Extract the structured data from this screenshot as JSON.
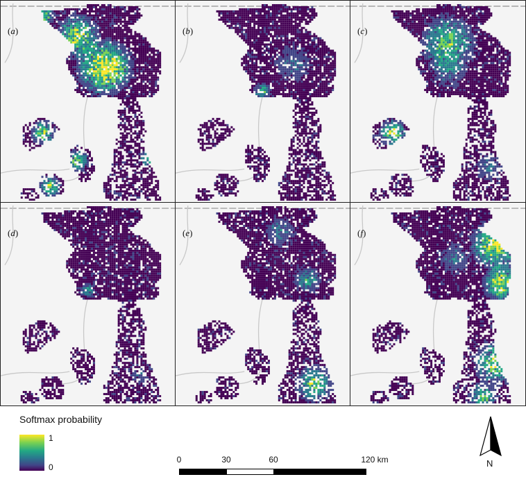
{
  "panels": [
    {
      "label": "a",
      "mode": "a"
    },
    {
      "label": "b",
      "mode": "b"
    },
    {
      "label": "c",
      "mode": "c"
    },
    {
      "label": "d",
      "mode": "d"
    },
    {
      "label": "e",
      "mode": "e"
    },
    {
      "label": "f",
      "mode": "f"
    }
  ],
  "legend": {
    "title": "Softmax probability",
    "max_label": "1",
    "min_label": "0",
    "colors": [
      "#fde725",
      "#7ad151",
      "#22a884",
      "#2a788e",
      "#414487",
      "#440154"
    ]
  },
  "scalebar": {
    "labels": [
      "0",
      "30",
      "60",
      "120 km"
    ]
  },
  "north_arrow": {
    "label": "N"
  },
  "colors": {
    "background": "#f4f4f4",
    "road": "#c8c8c8",
    "frame": "#222222"
  }
}
